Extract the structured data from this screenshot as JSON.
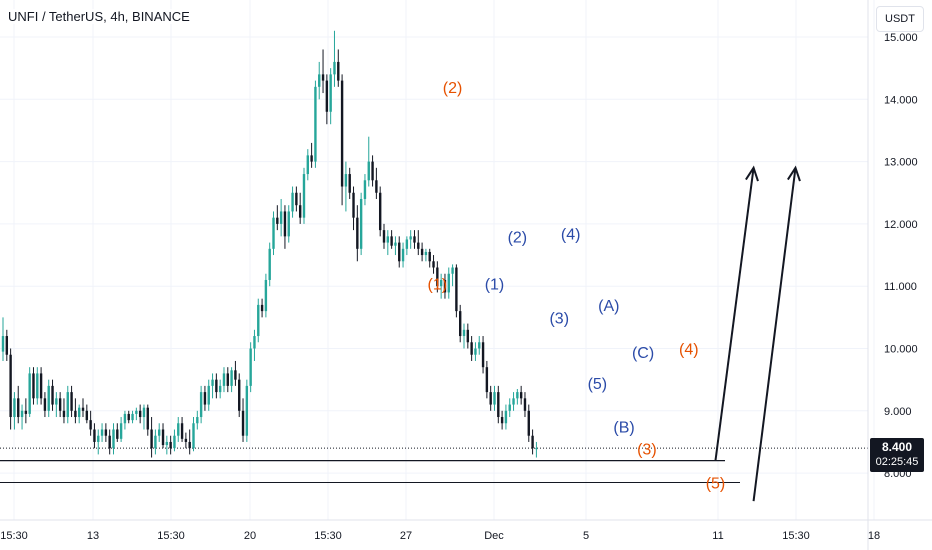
{
  "legend": {
    "text": "UNFI / TetherUS, 4h, BINANCE"
  },
  "currency_button": "USDT",
  "last_price": {
    "value": "8.400",
    "countdown": "02:25:45"
  },
  "chart_data": {
    "type": "candlestick",
    "symbol": "UNFI / TetherUS",
    "interval": "4h",
    "exchange": "BINANCE",
    "ylim": [
      7.6,
      15.2
    ],
    "y_ticks": [
      "8.000",
      "9.000",
      "10.000",
      "11.000",
      "12.000",
      "13.000",
      "14.000",
      "15.000"
    ],
    "x_ticks": [
      "15:30",
      "13",
      "15:30",
      "20",
      "15:30",
      "27",
      "Dec",
      "5",
      "11",
      "15:30",
      "18"
    ],
    "last_price": 8.4,
    "price_line_value": 8.4,
    "horizontal_levels": [
      8.2,
      7.85
    ],
    "wave_labels": [
      {
        "text": "(2)",
        "color": "#e65100",
        "x": 118,
        "y": 14.1
      },
      {
        "text": "(1)",
        "color": "#e65100",
        "x": 114,
        "y": 10.95
      },
      {
        "text": "(1)",
        "color": "#2b4ba8",
        "x": 129,
        "y": 10.95
      },
      {
        "text": "(2)",
        "color": "#2b4ba8",
        "x": 135,
        "y": 11.7
      },
      {
        "text": "(4)",
        "color": "#2b4ba8",
        "x": 149,
        "y": 11.75
      },
      {
        "text": "(3)",
        "color": "#2b4ba8",
        "x": 146,
        "y": 10.4
      },
      {
        "text": "(A)",
        "color": "#2b4ba8",
        "x": 159,
        "y": 10.6
      },
      {
        "text": "(C)",
        "color": "#2b4ba8",
        "x": 168,
        "y": 9.85
      },
      {
        "text": "(4)",
        "color": "#e65100",
        "x": 180,
        "y": 9.9
      },
      {
        "text": "(5)",
        "color": "#2b4ba8",
        "x": 156,
        "y": 9.35
      },
      {
        "text": "(B)",
        "color": "#2b4ba8",
        "x": 163,
        "y": 8.65
      },
      {
        "text": "(3)",
        "color": "#e65100",
        "x": 169,
        "y": 8.3
      },
      {
        "text": "(5)",
        "color": "#e65100",
        "x": 187,
        "y": 7.75
      }
    ],
    "projection_arrows": [
      {
        "from": [
          187,
          8.2
        ],
        "to": [
          197,
          12.9
        ]
      },
      {
        "from": [
          197,
          7.55
        ],
        "to": [
          208,
          12.9
        ]
      }
    ],
    "candles": [
      {
        "o": 9.95,
        "h": 10.5,
        "l": 9.8,
        "c": 10.2
      },
      {
        "o": 10.2,
        "h": 10.3,
        "l": 9.8,
        "c": 9.9
      },
      {
        "o": 9.9,
        "h": 10.0,
        "l": 8.7,
        "c": 8.9
      },
      {
        "o": 8.9,
        "h": 9.3,
        "l": 8.7,
        "c": 9.2
      },
      {
        "o": 9.2,
        "h": 9.4,
        "l": 8.8,
        "c": 8.9
      },
      {
        "o": 8.9,
        "h": 9.1,
        "l": 8.7,
        "c": 9.0
      },
      {
        "o": 9.0,
        "h": 9.2,
        "l": 8.8,
        "c": 8.95
      },
      {
        "o": 8.95,
        "h": 9.7,
        "l": 8.9,
        "c": 9.6
      },
      {
        "o": 9.6,
        "h": 9.7,
        "l": 9.1,
        "c": 9.2
      },
      {
        "o": 9.2,
        "h": 9.7,
        "l": 9.1,
        "c": 9.6
      },
      {
        "o": 9.6,
        "h": 9.7,
        "l": 9.1,
        "c": 9.2
      },
      {
        "o": 9.2,
        "h": 9.3,
        "l": 8.9,
        "c": 9.0
      },
      {
        "o": 9.0,
        "h": 9.5,
        "l": 8.9,
        "c": 9.4
      },
      {
        "o": 9.4,
        "h": 9.5,
        "l": 9.0,
        "c": 9.1
      },
      {
        "o": 9.1,
        "h": 9.3,
        "l": 8.9,
        "c": 9.2
      },
      {
        "o": 9.2,
        "h": 9.3,
        "l": 8.9,
        "c": 9.0
      },
      {
        "o": 9.0,
        "h": 9.2,
        "l": 8.8,
        "c": 8.9
      },
      {
        "o": 8.9,
        "h": 9.4,
        "l": 8.8,
        "c": 9.3
      },
      {
        "o": 9.3,
        "h": 9.4,
        "l": 8.9,
        "c": 9.0
      },
      {
        "o": 9.0,
        "h": 9.2,
        "l": 8.8,
        "c": 8.9
      },
      {
        "o": 8.9,
        "h": 9.1,
        "l": 8.8,
        "c": 9.05
      },
      {
        "o": 9.05,
        "h": 9.2,
        "l": 8.9,
        "c": 9.0
      },
      {
        "o": 9.0,
        "h": 9.1,
        "l": 8.8,
        "c": 8.85
      },
      {
        "o": 8.85,
        "h": 9.0,
        "l": 8.6,
        "c": 8.7
      },
      {
        "o": 8.7,
        "h": 8.8,
        "l": 8.4,
        "c": 8.5
      },
      {
        "o": 8.5,
        "h": 8.7,
        "l": 8.3,
        "c": 8.6
      },
      {
        "o": 8.6,
        "h": 8.8,
        "l": 8.5,
        "c": 8.7
      },
      {
        "o": 8.7,
        "h": 8.8,
        "l": 8.5,
        "c": 8.6
      },
      {
        "o": 8.6,
        "h": 8.7,
        "l": 8.3,
        "c": 8.4
      },
      {
        "o": 8.4,
        "h": 8.8,
        "l": 8.3,
        "c": 8.7
      },
      {
        "o": 8.7,
        "h": 8.8,
        "l": 8.5,
        "c": 8.55
      },
      {
        "o": 8.55,
        "h": 8.9,
        "l": 8.5,
        "c": 8.8
      },
      {
        "o": 8.8,
        "h": 9.0,
        "l": 8.7,
        "c": 8.95
      },
      {
        "o": 8.95,
        "h": 9.0,
        "l": 8.8,
        "c": 8.85
      },
      {
        "o": 8.85,
        "h": 9.0,
        "l": 8.8,
        "c": 8.95
      },
      {
        "o": 8.95,
        "h": 9.05,
        "l": 8.85,
        "c": 9.0
      },
      {
        "o": 9.0,
        "h": 9.1,
        "l": 8.8,
        "c": 8.9
      },
      {
        "o": 8.9,
        "h": 9.1,
        "l": 8.7,
        "c": 9.05
      },
      {
        "o": 9.05,
        "h": 9.1,
        "l": 8.6,
        "c": 8.7
      },
      {
        "o": 8.7,
        "h": 8.9,
        "l": 8.25,
        "c": 8.4
      },
      {
        "o": 8.4,
        "h": 8.7,
        "l": 8.3,
        "c": 8.6
      },
      {
        "o": 8.6,
        "h": 8.8,
        "l": 8.5,
        "c": 8.7
      },
      {
        "o": 8.7,
        "h": 8.8,
        "l": 8.4,
        "c": 8.45
      },
      {
        "o": 8.45,
        "h": 8.6,
        "l": 8.3,
        "c": 8.5
      },
      {
        "o": 8.5,
        "h": 8.6,
        "l": 8.3,
        "c": 8.4
      },
      {
        "o": 8.4,
        "h": 8.7,
        "l": 8.35,
        "c": 8.6
      },
      {
        "o": 8.6,
        "h": 8.9,
        "l": 8.5,
        "c": 8.8
      },
      {
        "o": 8.8,
        "h": 8.9,
        "l": 8.5,
        "c": 8.55
      },
      {
        "o": 8.55,
        "h": 8.65,
        "l": 8.4,
        "c": 8.5
      },
      {
        "o": 8.5,
        "h": 8.7,
        "l": 8.3,
        "c": 8.4
      },
      {
        "o": 8.4,
        "h": 8.9,
        "l": 8.35,
        "c": 8.8
      },
      {
        "o": 8.8,
        "h": 9.0,
        "l": 8.7,
        "c": 8.9
      },
      {
        "o": 8.9,
        "h": 9.4,
        "l": 8.8,
        "c": 9.3
      },
      {
        "o": 9.3,
        "h": 9.4,
        "l": 9.0,
        "c": 9.1
      },
      {
        "o": 9.1,
        "h": 9.5,
        "l": 9.0,
        "c": 9.4
      },
      {
        "o": 9.4,
        "h": 9.6,
        "l": 9.2,
        "c": 9.5
      },
      {
        "o": 9.5,
        "h": 9.6,
        "l": 9.2,
        "c": 9.3
      },
      {
        "o": 9.3,
        "h": 9.5,
        "l": 9.2,
        "c": 9.4
      },
      {
        "o": 9.4,
        "h": 9.7,
        "l": 9.3,
        "c": 9.6
      },
      {
        "o": 9.6,
        "h": 9.7,
        "l": 9.3,
        "c": 9.4
      },
      {
        "o": 9.4,
        "h": 9.7,
        "l": 9.3,
        "c": 9.65
      },
      {
        "o": 9.65,
        "h": 9.8,
        "l": 9.4,
        "c": 9.5
      },
      {
        "o": 9.5,
        "h": 9.6,
        "l": 8.9,
        "c": 9.0
      },
      {
        "o": 9.0,
        "h": 9.2,
        "l": 8.5,
        "c": 8.6
      },
      {
        "o": 8.6,
        "h": 9.5,
        "l": 8.5,
        "c": 9.4
      },
      {
        "o": 9.4,
        "h": 10.1,
        "l": 9.3,
        "c": 10.0
      },
      {
        "o": 10.0,
        "h": 10.3,
        "l": 9.8,
        "c": 10.2
      },
      {
        "o": 10.2,
        "h": 10.8,
        "l": 10.1,
        "c": 10.7
      },
      {
        "o": 10.7,
        "h": 10.8,
        "l": 10.5,
        "c": 10.6
      },
      {
        "o": 10.6,
        "h": 11.2,
        "l": 10.5,
        "c": 11.1
      },
      {
        "o": 11.1,
        "h": 11.7,
        "l": 11.0,
        "c": 11.6
      },
      {
        "o": 11.6,
        "h": 12.2,
        "l": 11.5,
        "c": 12.1
      },
      {
        "o": 12.1,
        "h": 12.3,
        "l": 11.9,
        "c": 12.0
      },
      {
        "o": 12.0,
        "h": 12.4,
        "l": 11.8,
        "c": 12.2
      },
      {
        "o": 12.2,
        "h": 12.3,
        "l": 11.6,
        "c": 11.8
      },
      {
        "o": 11.8,
        "h": 12.3,
        "l": 11.7,
        "c": 12.2
      },
      {
        "o": 12.2,
        "h": 12.6,
        "l": 12.1,
        "c": 12.5
      },
      {
        "o": 12.5,
        "h": 12.6,
        "l": 12.2,
        "c": 12.3
      },
      {
        "o": 12.3,
        "h": 12.5,
        "l": 12.0,
        "c": 12.1
      },
      {
        "o": 12.1,
        "h": 12.9,
        "l": 12.0,
        "c": 12.8
      },
      {
        "o": 12.8,
        "h": 13.2,
        "l": 12.7,
        "c": 13.1
      },
      {
        "o": 13.1,
        "h": 13.3,
        "l": 12.9,
        "c": 13.0
      },
      {
        "o": 13.0,
        "h": 14.3,
        "l": 12.9,
        "c": 14.2
      },
      {
        "o": 14.2,
        "h": 14.6,
        "l": 14.0,
        "c": 14.4
      },
      {
        "o": 14.4,
        "h": 14.8,
        "l": 14.1,
        "c": 14.3
      },
      {
        "o": 14.3,
        "h": 14.4,
        "l": 13.6,
        "c": 13.8
      },
      {
        "o": 13.8,
        "h": 14.5,
        "l": 13.6,
        "c": 14.4
      },
      {
        "o": 14.4,
        "h": 15.1,
        "l": 14.2,
        "c": 14.6
      },
      {
        "o": 14.6,
        "h": 14.8,
        "l": 14.2,
        "c": 14.3
      },
      {
        "o": 14.3,
        "h": 14.4,
        "l": 12.3,
        "c": 12.6
      },
      {
        "o": 12.6,
        "h": 13.0,
        "l": 12.2,
        "c": 12.8
      },
      {
        "o": 12.8,
        "h": 12.9,
        "l": 12.4,
        "c": 12.5
      },
      {
        "o": 12.5,
        "h": 12.6,
        "l": 11.9,
        "c": 12.1
      },
      {
        "o": 12.1,
        "h": 12.3,
        "l": 11.4,
        "c": 11.6
      },
      {
        "o": 11.6,
        "h": 12.5,
        "l": 11.5,
        "c": 12.4
      },
      {
        "o": 12.4,
        "h": 12.8,
        "l": 12.3,
        "c": 12.7
      },
      {
        "o": 12.7,
        "h": 13.4,
        "l": 12.6,
        "c": 13.0
      },
      {
        "o": 13.0,
        "h": 13.1,
        "l": 12.6,
        "c": 12.7
      },
      {
        "o": 12.7,
        "h": 12.9,
        "l": 12.4,
        "c": 12.5
      },
      {
        "o": 12.5,
        "h": 12.6,
        "l": 11.8,
        "c": 11.9
      },
      {
        "o": 11.9,
        "h": 12.0,
        "l": 11.6,
        "c": 11.7
      },
      {
        "o": 11.7,
        "h": 11.9,
        "l": 11.5,
        "c": 11.8
      },
      {
        "o": 11.8,
        "h": 11.9,
        "l": 11.6,
        "c": 11.65
      },
      {
        "o": 11.65,
        "h": 11.8,
        "l": 11.5,
        "c": 11.7
      },
      {
        "o": 11.7,
        "h": 11.8,
        "l": 11.3,
        "c": 11.4
      },
      {
        "o": 11.4,
        "h": 11.7,
        "l": 11.3,
        "c": 11.6
      },
      {
        "o": 11.6,
        "h": 11.8,
        "l": 11.5,
        "c": 11.75
      },
      {
        "o": 11.75,
        "h": 11.9,
        "l": 11.6,
        "c": 11.8
      },
      {
        "o": 11.8,
        "h": 11.9,
        "l": 11.6,
        "c": 11.7
      },
      {
        "o": 11.7,
        "h": 11.9,
        "l": 11.5,
        "c": 11.6
      },
      {
        "o": 11.6,
        "h": 11.7,
        "l": 11.4,
        "c": 11.5
      },
      {
        "o": 11.5,
        "h": 11.6,
        "l": 11.4,
        "c": 11.55
      },
      {
        "o": 11.55,
        "h": 11.6,
        "l": 11.3,
        "c": 11.4
      },
      {
        "o": 11.4,
        "h": 11.5,
        "l": 11.2,
        "c": 11.3
      },
      {
        "o": 11.3,
        "h": 11.4,
        "l": 10.9,
        "c": 11.0
      },
      {
        "o": 11.0,
        "h": 11.2,
        "l": 10.8,
        "c": 11.1
      },
      {
        "o": 11.1,
        "h": 11.2,
        "l": 10.8,
        "c": 10.9
      },
      {
        "o": 10.9,
        "h": 11.3,
        "l": 10.8,
        "c": 11.2
      },
      {
        "o": 11.2,
        "h": 11.35,
        "l": 11.0,
        "c": 11.3
      },
      {
        "o": 11.3,
        "h": 11.35,
        "l": 10.5,
        "c": 10.6
      },
      {
        "o": 10.6,
        "h": 10.7,
        "l": 10.1,
        "c": 10.2
      },
      {
        "o": 10.2,
        "h": 10.4,
        "l": 10.0,
        "c": 10.3
      },
      {
        "o": 10.3,
        "h": 10.4,
        "l": 10.0,
        "c": 10.1
      },
      {
        "o": 10.1,
        "h": 10.2,
        "l": 9.8,
        "c": 9.9
      },
      {
        "o": 9.9,
        "h": 10.1,
        "l": 9.8,
        "c": 10.0
      },
      {
        "o": 10.0,
        "h": 10.2,
        "l": 9.9,
        "c": 10.1
      },
      {
        "o": 10.1,
        "h": 10.2,
        "l": 9.6,
        "c": 9.7
      },
      {
        "o": 9.7,
        "h": 9.8,
        "l": 9.2,
        "c": 9.3
      },
      {
        "o": 9.3,
        "h": 9.4,
        "l": 9.0,
        "c": 9.1
      },
      {
        "o": 9.1,
        "h": 9.4,
        "l": 9.0,
        "c": 9.3
      },
      {
        "o": 9.3,
        "h": 9.4,
        "l": 8.8,
        "c": 8.9
      },
      {
        "o": 8.9,
        "h": 9.0,
        "l": 8.7,
        "c": 8.8
      },
      {
        "o": 8.8,
        "h": 9.1,
        "l": 8.7,
        "c": 9.0
      },
      {
        "o": 9.0,
        "h": 9.2,
        "l": 8.9,
        "c": 9.1
      },
      {
        "o": 9.1,
        "h": 9.3,
        "l": 9.0,
        "c": 9.2
      },
      {
        "o": 9.2,
        "h": 9.35,
        "l": 9.1,
        "c": 9.3
      },
      {
        "o": 9.3,
        "h": 9.4,
        "l": 9.1,
        "c": 9.2
      },
      {
        "o": 9.2,
        "h": 9.3,
        "l": 8.9,
        "c": 9.0
      },
      {
        "o": 9.0,
        "h": 9.1,
        "l": 8.5,
        "c": 8.6
      },
      {
        "o": 8.6,
        "h": 8.7,
        "l": 8.3,
        "c": 8.4
      },
      {
        "o": 8.4,
        "h": 8.5,
        "l": 8.25,
        "c": 8.4
      }
    ]
  }
}
